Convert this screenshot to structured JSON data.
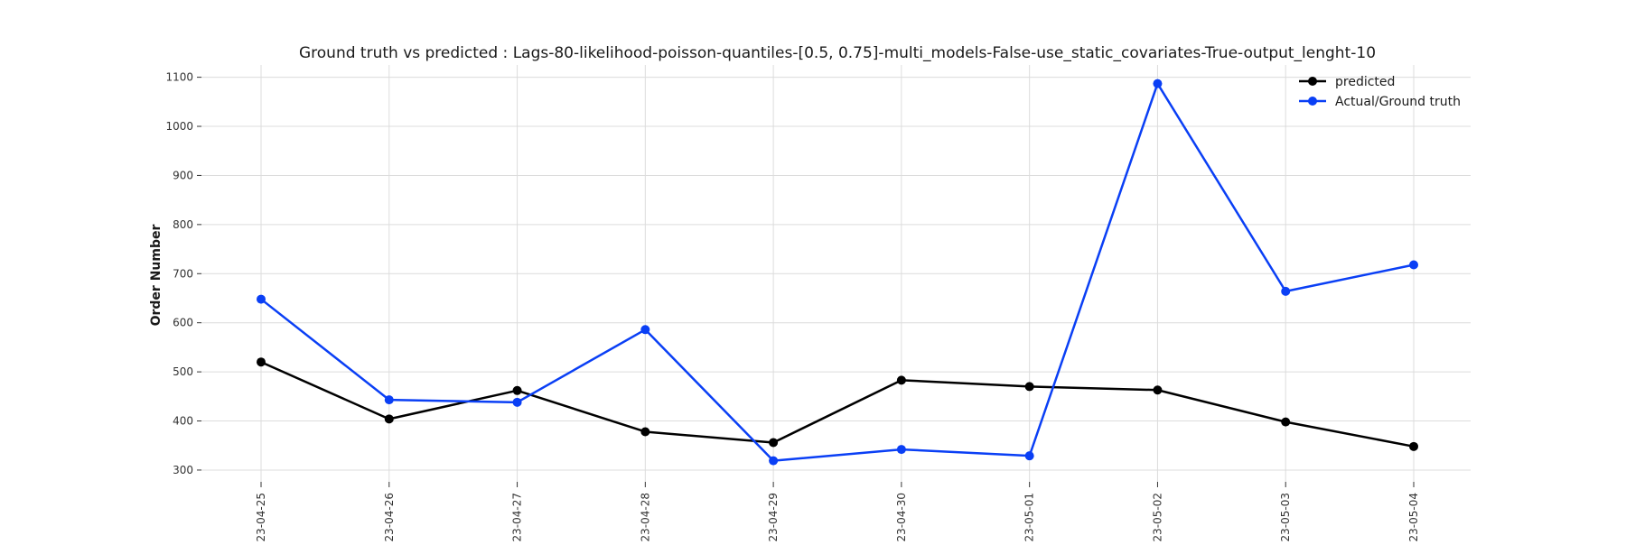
{
  "chart_data": {
    "type": "line",
    "title": "Ground truth vs predicted : Lags-80-likelihood-poisson-quantiles-[0.5, 0.75]-multi_models-False-use_static_covariates-True-output_lenght-10",
    "xlabel": "",
    "ylabel": "Order Number",
    "categories": [
      "2023-04-25",
      "2023-04-26",
      "2023-04-27",
      "2023-04-28",
      "2023-04-29",
      "2023-04-30",
      "2023-05-01",
      "2023-05-02",
      "2023-05-03",
      "2023-05-04"
    ],
    "yticks": [
      300,
      400,
      500,
      600,
      700,
      800,
      900,
      1000,
      1100
    ],
    "ylim": [
      276,
      1125
    ],
    "grid": true,
    "legend_position": "top-right",
    "series": [
      {
        "name": "predicted",
        "color": "#000000",
        "values": [
          520,
          404,
          462,
          378,
          356,
          483,
          470,
          463,
          398,
          348
        ]
      },
      {
        "name": "Actual/Ground truth",
        "color": "#0a3ff5",
        "values": [
          648,
          443,
          438,
          586,
          319,
          342,
          329,
          1087,
          664,
          718
        ]
      }
    ]
  }
}
